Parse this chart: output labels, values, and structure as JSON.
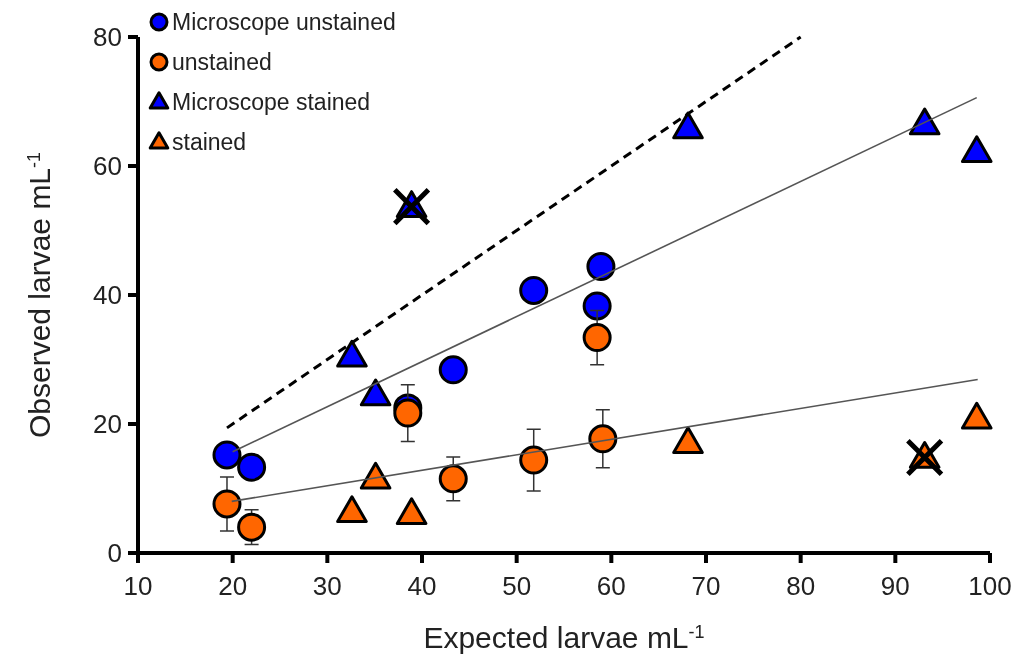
{
  "chart_data": {
    "type": "scatter",
    "xlabel": "Expected larvae mL$^{-1}$",
    "ylabel": "Observed larvae mL$^{-1}$",
    "xlim": [
      10,
      100
    ],
    "xticks": [
      10,
      20,
      30,
      40,
      50,
      60,
      70,
      80,
      90,
      100
    ],
    "ylim": [
      0,
      80
    ],
    "yticks": [
      0,
      20,
      40,
      60,
      80
    ],
    "grid": false,
    "legend": "top left",
    "series": [
      {
        "type": "line",
        "color": "#000000",
        "line_style": "dashed",
        "marker": "none",
        "x": [
          19.4,
          80
        ],
        "values": [
          19.4,
          80
        ]
      },
      {
        "type": "line",
        "color": "#555555",
        "line_style": "solid",
        "marker": "none",
        "x": [
          20.0,
          98.6
        ],
        "values": [
          15.7,
          70.6
        ]
      },
      {
        "type": "line",
        "color": "#555555",
        "line_style": "solid",
        "marker": "none",
        "x": [
          19.9,
          98.7
        ],
        "values": [
          8.0,
          26.9
        ]
      },
      {
        "name": "Microscope unstained",
        "color": "#0000ff",
        "marker": "circle",
        "x": [
          19.4,
          22.0,
          38.5,
          43.3,
          51.8,
          58.9,
          58.5
        ],
        "values": [
          15.2,
          13.3,
          22.5,
          28.4,
          40.7,
          44.4,
          38.3
        ]
      },
      {
        "name": "unstained",
        "color": "#ff6600",
        "marker": "circle",
        "x": [
          19.4,
          22.0,
          38.5,
          43.3,
          51.8,
          58.5,
          59.1
        ],
        "values": [
          7.6,
          4.0,
          21.7,
          11.5,
          14.4,
          33.4,
          17.7
        ],
        "errors": [
          4.2,
          2.7,
          4.4,
          3.4,
          4.8,
          4.2,
          4.5
        ]
      },
      {
        "name": "Microscope stained",
        "color": "#0000ff",
        "marker": "triangle",
        "x": [
          32.6,
          35.1,
          38.9,
          68.1,
          93.1,
          98.6
        ],
        "values": [
          30.5,
          24.5,
          53.7,
          65.9,
          66.5,
          62.2
        ]
      },
      {
        "name": "stained",
        "color": "#ff6600",
        "marker": "triangle",
        "x": [
          32.6,
          35.1,
          38.9,
          68.1,
          93.1,
          98.6
        ],
        "values": [
          6.4,
          11.6,
          6.1,
          17.1,
          14.8,
          20.9
        ]
      },
      {
        "color": "#000000",
        "marker": "cross",
        "x": [
          38.9,
          93.1
        ],
        "values": [
          53.7,
          14.8
        ]
      }
    ]
  }
}
